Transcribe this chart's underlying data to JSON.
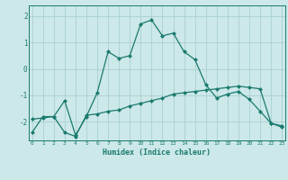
{
  "xlabel": "Humidex (Indice chaleur)",
  "x": [
    0,
    1,
    2,
    3,
    4,
    5,
    6,
    7,
    8,
    9,
    10,
    11,
    12,
    13,
    14,
    15,
    16,
    17,
    18,
    19,
    20,
    21,
    22,
    23
  ],
  "line1": [
    -2.4,
    -1.8,
    -1.8,
    -1.2,
    -2.5,
    -1.8,
    -0.9,
    0.65,
    0.4,
    0.5,
    1.7,
    1.85,
    1.25,
    1.35,
    0.65,
    0.35,
    -0.6,
    -1.1,
    -0.95,
    -0.85,
    -1.15,
    -1.6,
    -2.05,
    -2.2
  ],
  "line2": [
    -1.9,
    -1.85,
    -1.8,
    -2.4,
    -2.55,
    -1.75,
    -1.7,
    -1.6,
    -1.55,
    -1.4,
    -1.3,
    -1.2,
    -1.1,
    -0.95,
    -0.9,
    -0.85,
    -0.8,
    -0.75,
    -0.7,
    -0.65,
    -0.7,
    -0.75,
    -2.05,
    -2.15
  ],
  "line_color": "#1a7a6e",
  "bg_color": "#cce8e8",
  "grid_color": "#aacfcf",
  "ylim": [
    -2.7,
    2.4
  ],
  "yticks": [
    -2,
    -1,
    0,
    1,
    2
  ],
  "xlim": [
    -0.3,
    23.3
  ]
}
